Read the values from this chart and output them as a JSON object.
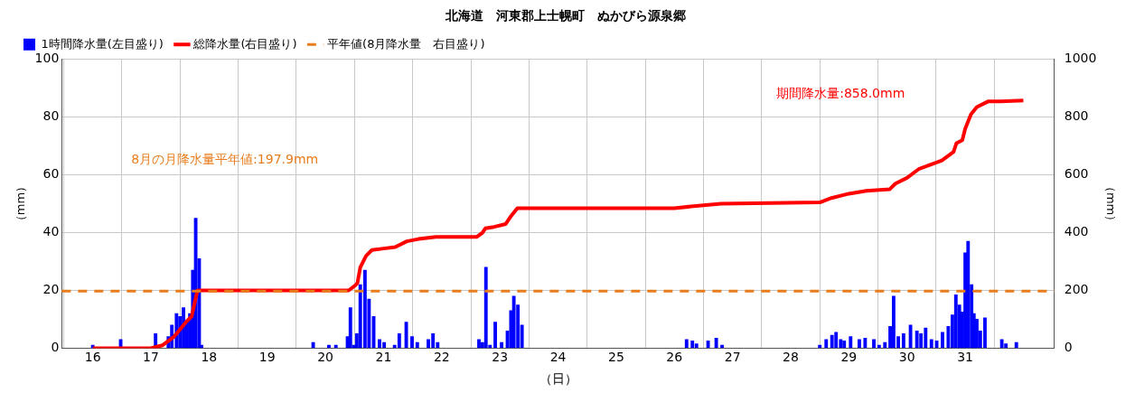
{
  "chart_data": {
    "type": "bar",
    "title": "北海道　河東郡上士幌町　ぬかびら源泉郷",
    "xlabel": "（日）",
    "ylabel": "（mm）",
    "y2label": "（mm）",
    "xlim": [
      16,
      32
    ],
    "xticks": [
      16,
      17,
      18,
      19,
      20,
      21,
      22,
      23,
      24,
      25,
      26,
      27,
      28,
      29,
      30,
      31
    ],
    "ylim": [
      0,
      100
    ],
    "yticks": [
      0,
      20,
      40,
      60,
      80,
      100
    ],
    "y2lim": [
      0,
      1000
    ],
    "y2ticks": [
      0,
      200,
      400,
      600,
      800,
      1000
    ],
    "grid": true,
    "legend": "top left",
    "series": [
      {
        "name": "1時間降水量(左目盛り)",
        "color": "#0000ff",
        "x": [
          16.0,
          16.48,
          17.08,
          17.16,
          17.3,
          17.36,
          17.44,
          17.5,
          17.56,
          17.62,
          17.67,
          17.72,
          17.77,
          17.83,
          17.87,
          19.79,
          20.06,
          20.18,
          20.38,
          20.43,
          20.49,
          20.54,
          20.6,
          20.68,
          20.75,
          20.83,
          20.93,
          21.01,
          21.19,
          21.27,
          21.39,
          21.49,
          21.58,
          21.77,
          21.85,
          21.93,
          22.64,
          22.7,
          22.76,
          22.83,
          22.92,
          23.03,
          23.13,
          23.19,
          23.24,
          23.31,
          23.38,
          26.21,
          26.31,
          26.38,
          26.58,
          26.72,
          26.82,
          28.5,
          28.61,
          28.71,
          28.78,
          28.86,
          28.92,
          29.03,
          29.18,
          29.28,
          29.43,
          29.52,
          29.62,
          29.71,
          29.77,
          29.85,
          29.94,
          30.06,
          30.17,
          30.24,
          30.32,
          30.42,
          30.51,
          30.61,
          30.71,
          30.78,
          30.84,
          30.9,
          30.95,
          31.0,
          31.05,
          31.11,
          31.15,
          31.2,
          31.26,
          31.34,
          31.63,
          31.7,
          31.88
        ],
        "values": [
          1,
          3,
          5,
          null,
          4,
          8,
          12,
          11,
          14,
          9,
          12,
          27,
          45,
          31,
          1,
          2,
          1,
          1,
          4,
          14,
          1,
          5,
          22,
          27,
          17,
          11,
          3,
          2,
          1,
          5,
          9,
          4,
          2,
          3,
          5,
          2,
          3,
          2,
          28,
          1,
          9,
          2,
          6,
          13,
          18,
          15,
          8,
          3,
          2.5,
          1.5,
          2.5,
          3.5,
          1,
          1,
          3,
          4.5,
          5.5,
          3,
          2.5,
          4,
          3,
          3.5,
          3,
          1,
          2,
          7.5,
          18,
          4,
          5,
          8,
          6,
          5,
          7,
          3,
          2.5,
          5.5,
          7.5,
          11.5,
          18.5,
          15,
          12.5,
          33,
          37,
          22,
          12,
          10,
          6,
          10.5,
          3,
          1.5,
          2
        ]
      },
      {
        "name": "総降水量(右目盛り)",
        "type": "line",
        "axis": "y2",
        "color": "#ff0000",
        "x": [
          16,
          17.0,
          17.2,
          17.4,
          17.6,
          17.7,
          17.8,
          20.4,
          20.5,
          20.55,
          20.6,
          20.7,
          20.8,
          21.0,
          21.2,
          21.4,
          21.6,
          21.9,
          22.6,
          22.7,
          22.75,
          22.9,
          23.1,
          23.2,
          23.3,
          26.0,
          26.5,
          26.8,
          28.5,
          28.7,
          29.0,
          29.3,
          29.7,
          29.8,
          30.0,
          30.2,
          30.4,
          30.6,
          30.8,
          30.85,
          30.95,
          31.0,
          31.1,
          31.2,
          31.4,
          31.6,
          32
        ],
        "values": [
          0,
          0,
          10,
          40,
          90,
          110,
          200,
          200,
          215,
          225,
          280,
          320,
          340,
          345,
          350,
          370,
          378,
          385,
          385,
          400,
          415,
          420,
          430,
          460,
          485,
          485,
          495,
          500,
          505,
          520,
          535,
          545,
          550,
          570,
          590,
          620,
          635,
          650,
          680,
          710,
          720,
          760,
          810,
          835,
          855,
          855,
          858
        ]
      }
    ],
    "ref_lines": [
      {
        "axis": "y2",
        "value": 197.9,
        "label": "平年値(8月降水量　右目盛り)",
        "color": "#e87d1e",
        "line_style": "dashed"
      }
    ],
    "annotations": [
      "8月の月降水量平年値:197.9mm",
      "期間降水量:858.0mm"
    ]
  }
}
